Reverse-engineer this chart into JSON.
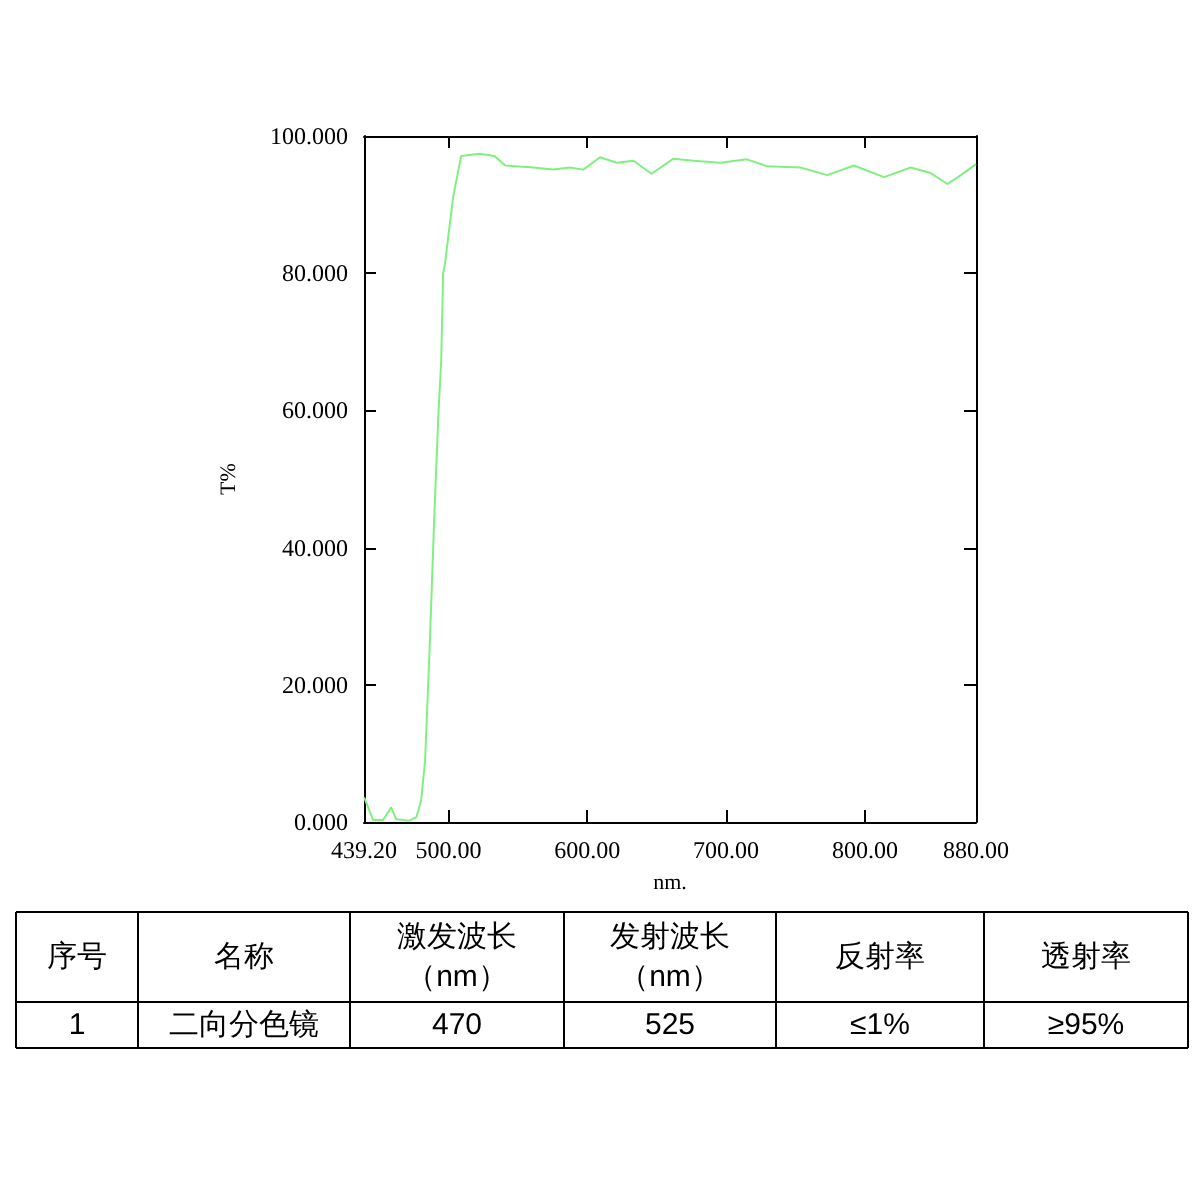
{
  "chart_data": {
    "type": "line",
    "xlabel": "nm.",
    "ylabel": "T%",
    "x": [
      439.3,
      445.7,
      452.9,
      458.7,
      462.5,
      472,
      476.9,
      480.3,
      483.2,
      486.5,
      489.9,
      492.8,
      494.8,
      496.2,
      497.6,
      503.4,
      509.2,
      522.6,
      533.2,
      540.9,
      561.1,
      575.5,
      587.5,
      597.2,
      609.2,
      621.2,
      633.3,
      646.3,
      662.1,
      676.6,
      695.8,
      715,
      729.5,
      753.6,
      772.8,
      792.1,
      813.8,
      833,
      847.4,
      859.4,
      869.1,
      880
    ],
    "series": [
      {
        "color": "#80f080",
        "values": [
          3.6,
          0.3,
          0.3,
          2.1,
          0.4,
          0.2,
          0.7,
          3.1,
          8.9,
          25.5,
          44.9,
          59.5,
          67.2,
          79.9,
          81.5,
          91.1,
          97.1,
          97.4,
          97.1,
          95.7,
          95.4,
          95.1,
          95.4,
          95.1,
          96.9,
          96.1,
          96.4,
          94.5,
          96.7,
          96.4,
          96.1,
          96.6,
          95.6,
          95.4,
          94.3,
          95.7,
          94.0,
          95.4,
          94.6,
          93.0,
          94.3,
          95.9
        ]
      }
    ],
    "xlim": [
      439.2,
      880
    ],
    "xticks": [
      {
        "value": 439.2,
        "label": "439.20"
      },
      {
        "value": 500,
        "label": "500.00"
      },
      {
        "value": 600,
        "label": "600.00"
      },
      {
        "value": 700,
        "label": "700.00"
      },
      {
        "value": 800,
        "label": "800.00"
      },
      {
        "value": 880,
        "label": "880.00"
      }
    ],
    "ylim": [
      0,
      100
    ],
    "yticks": [
      {
        "value": 0,
        "label": "0.000"
      },
      {
        "value": 20,
        "label": "20.000"
      },
      {
        "value": 40,
        "label": "40.000"
      },
      {
        "value": 60,
        "label": "60.000"
      },
      {
        "value": 80,
        "label": "80.000"
      },
      {
        "value": 100,
        "label": "100.000"
      }
    ],
    "grid": false,
    "marker": "none",
    "line_style": "solid",
    "annotations": [
      "序号",
      "名称",
      "激发波长（nm）",
      "发射波长（nm）",
      "反射率",
      "透射率",
      "1",
      "二向分色镜",
      "470",
      "525",
      "≤1%",
      "≥95%"
    ]
  }
}
